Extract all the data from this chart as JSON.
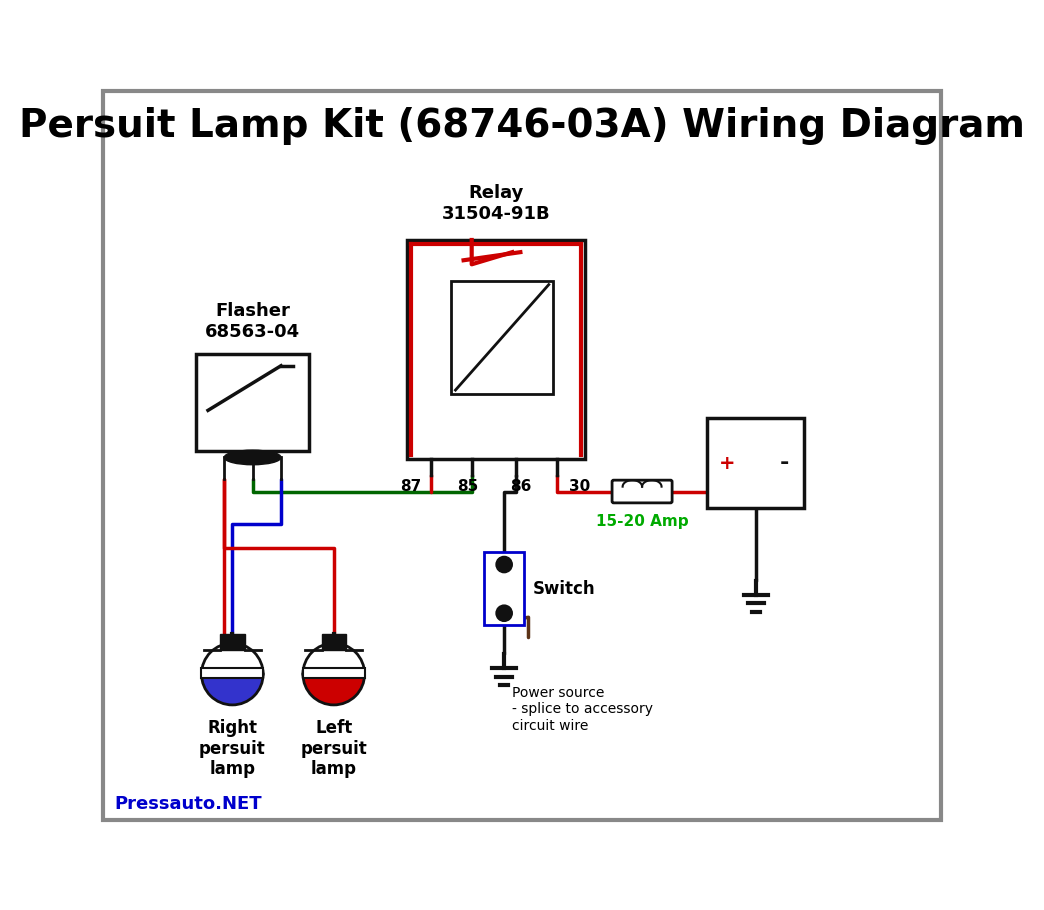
{
  "title": "Persuit Lamp Kit (68746-03A) Wiring Diagram",
  "title_fontsize": 28,
  "bg_color": "#ffffff",
  "border_color": "#1a1a1a",
  "relay_label": "Relay\n31504-91B",
  "flasher_label": "Flasher\n68563-04",
  "pin_labels": [
    "87",
    "85",
    "86",
    "30"
  ],
  "switch_label": "Switch",
  "fuse_label": "15-20 Amp",
  "fuse_color": "#00aa00",
  "power_label": "Power source\n- splice to accessory\ncircuit wire",
  "right_lamp_label": "Right\npersuit\nlamp",
  "left_lamp_label": "Left\npersuit\nlamp",
  "footer": "Pressauto.NET",
  "footer_color": "#0000cc",
  "wire_red": "#cc0000",
  "wire_blue": "#0000cc",
  "wire_green": "#006600",
  "wire_black": "#111111",
  "wire_brown": "#5c3317",
  "lamp_blue_fill": "#3333cc",
  "lamp_red_fill": "#cc0000"
}
